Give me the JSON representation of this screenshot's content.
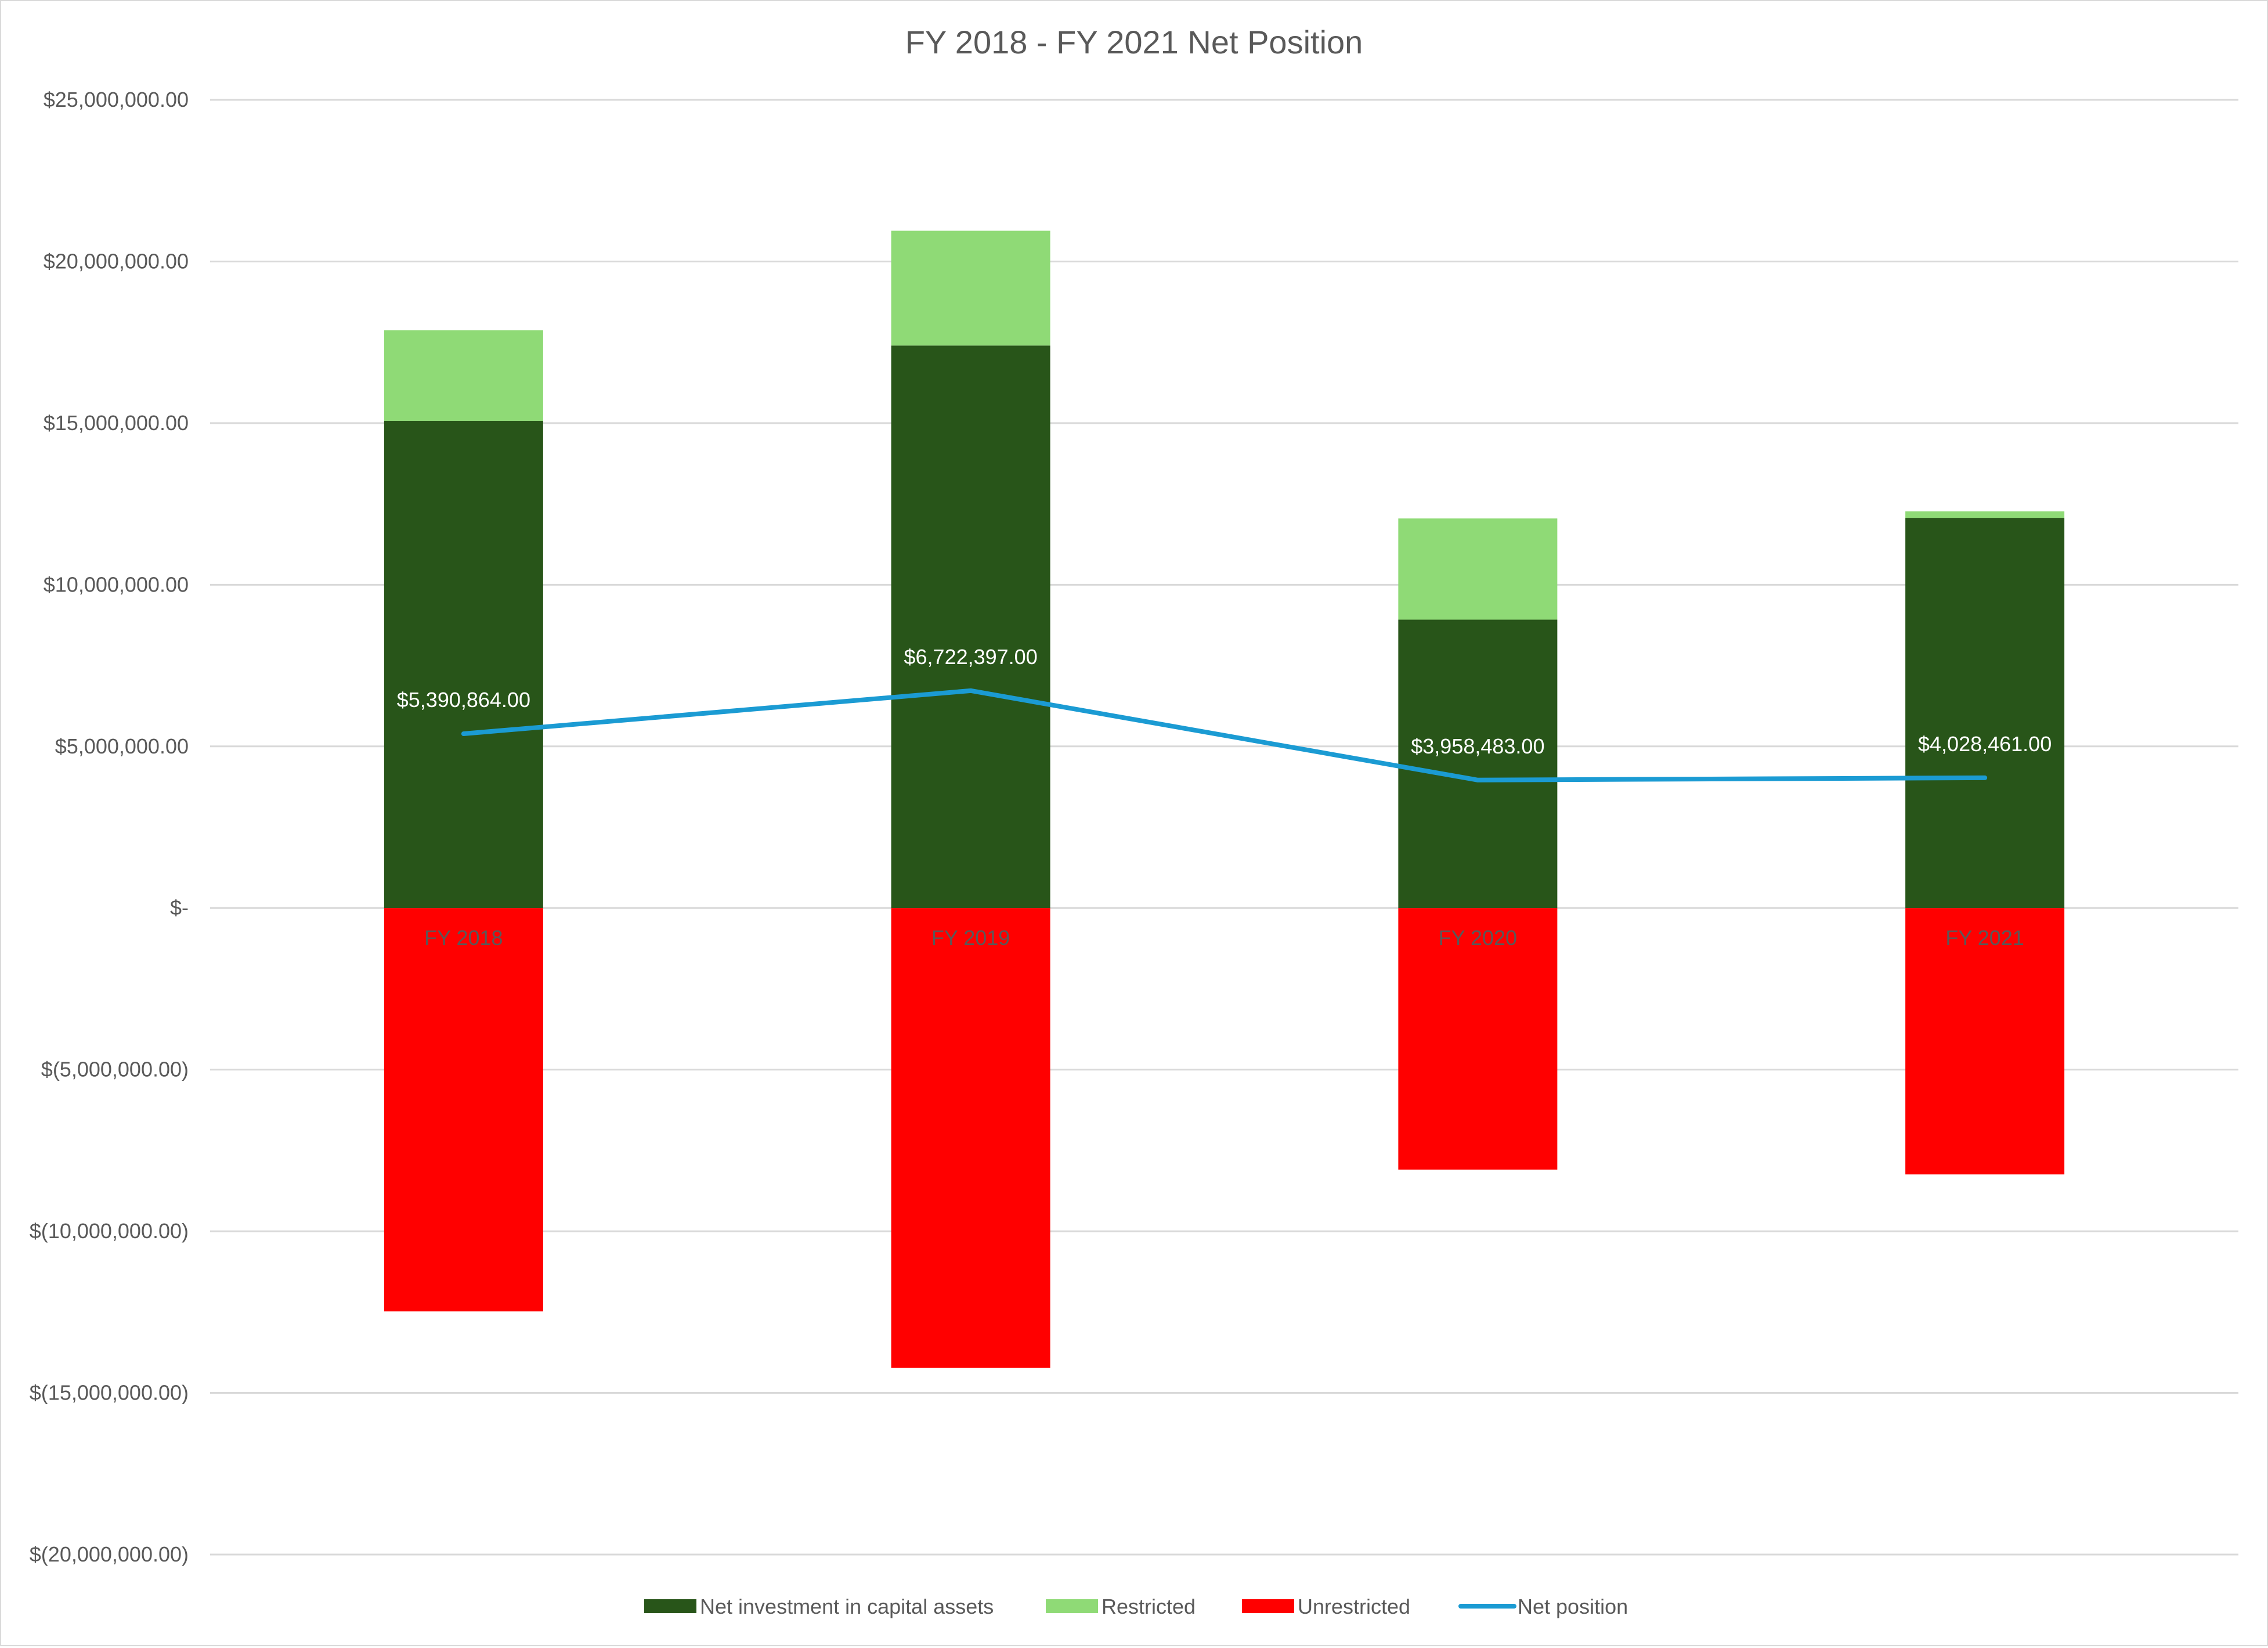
{
  "chart_data": {
    "type": "bar",
    "stacked": true,
    "title": "FY 2018 - FY 2021 Net Position",
    "categories": [
      "FY 2018",
      "FY 2019",
      "FY 2020",
      "FY 2021"
    ],
    "ylim": [
      -20000000,
      25000000
    ],
    "ytick_values": [
      25000000,
      20000000,
      15000000,
      10000000,
      5000000,
      0,
      -5000000,
      -10000000,
      -15000000,
      -20000000
    ],
    "ytick_labels": [
      "$25,000,000.00",
      "$20,000,000.00",
      "$15,000,000.00",
      "$10,000,000.00",
      "$5,000,000.00",
      "$-",
      "$(5,000,000.00)",
      "$(10,000,000.00)",
      "$(15,000,000.00)",
      "$(20,000,000.00)"
    ],
    "grid": true,
    "legend_position": "bottom",
    "series": [
      {
        "name": "Net investment in capital assets",
        "type": "bar",
        "color": "#285519",
        "values": [
          15070000,
          17400000,
          8920000,
          12070000
        ]
      },
      {
        "name": "Restricted",
        "type": "bar",
        "color": "#8fda76",
        "values": [
          2800000,
          3550000,
          3130000,
          200000
        ]
      },
      {
        "name": "Unrestricted",
        "type": "bar",
        "color": "#ff0000",
        "values": [
          -12479136,
          -14227603,
          -8091517,
          -8241539
        ]
      },
      {
        "name": "Net position",
        "type": "line",
        "color": "#1b9bd3",
        "values": [
          5390864,
          6722397,
          3958483,
          4028461
        ],
        "data_labels": [
          "$5,390,864.00",
          "$6,722,397.00",
          "$3,958,483.00",
          "$4,028,461.00"
        ]
      }
    ]
  }
}
